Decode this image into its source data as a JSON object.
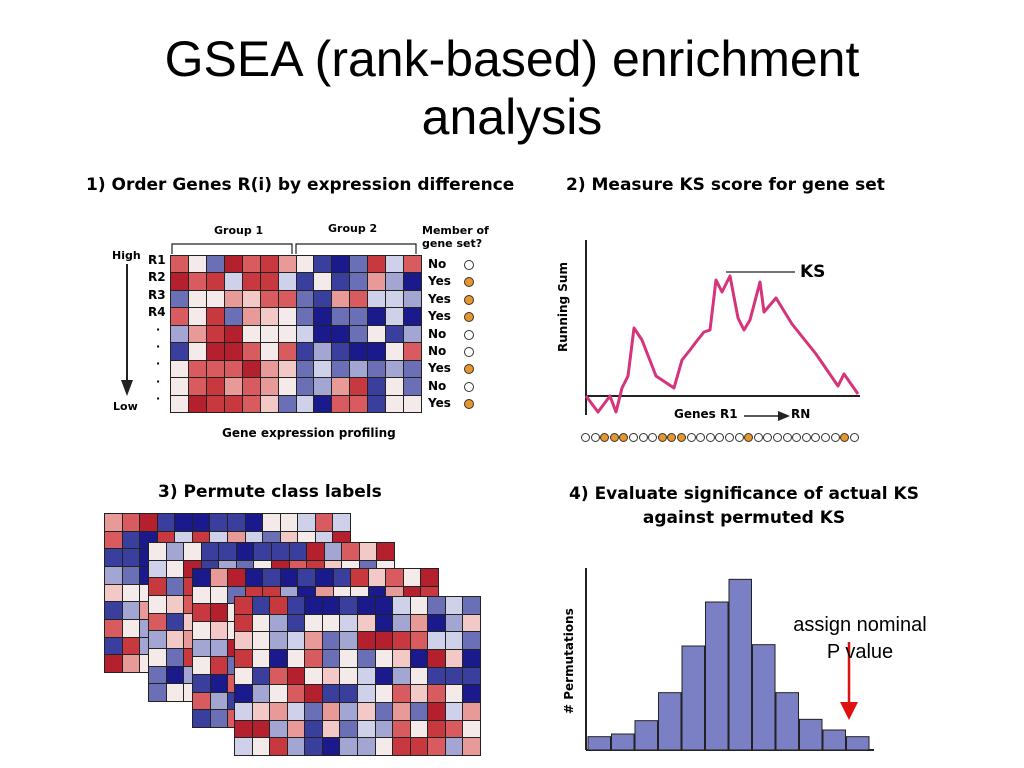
{
  "title_line1": "GSEA (rank-based) enrichment",
  "title_line2": "analysis",
  "panel1": {
    "heading": "1) Order Genes R(i) by expression difference",
    "group1": "Group 1",
    "group2": "Group 2",
    "member_header_1": "Member of",
    "member_header_2": "gene set?",
    "high": "High",
    "low": "Low",
    "rank_labels": [
      "R1",
      "R2",
      "R3",
      "R4",
      "·",
      "·",
      "·",
      "·",
      "·"
    ],
    "membership": [
      "No",
      "Yes",
      "Yes",
      "Yes",
      "No",
      "No",
      "Yes",
      "No",
      "Yes"
    ],
    "footer": "Gene expression profiling",
    "colors": {
      "red": "#b2182b",
      "blue": "#1a1a8c",
      "member_fill": "#e8952a"
    }
  },
  "panel2": {
    "heading": "2) Measure KS score for gene set",
    "ylabel": "Running Sum",
    "ks_label": "KS",
    "genes_label": "Genes R1",
    "genes_end": "RN",
    "curve_color": "#d6337a",
    "hit_strip": [
      0,
      0,
      1,
      1,
      1,
      0,
      0,
      0,
      1,
      1,
      1,
      0,
      0,
      0,
      0,
      0,
      0,
      1,
      0,
      0,
      0,
      0,
      0,
      0,
      0,
      0,
      0,
      1,
      0
    ]
  },
  "panel3": {
    "heading": "3) Permute class labels"
  },
  "panel4": {
    "heading_1": "4) Evaluate significance of actual KS",
    "heading_2": "against permuted KS",
    "ylabel": "# Permutations",
    "annotation_1": "assign nominal",
    "annotation_2": "P value",
    "bar_color": "#7b7fc4",
    "arrow_color": "#e01010"
  },
  "chart_data": {
    "type": "bar",
    "title": "",
    "xlabel": "",
    "ylabel": "# Permutations",
    "values": [
      1,
      1.2,
      2.2,
      4.3,
      7.8,
      11.1,
      12.8,
      7.9,
      4.3,
      2.3,
      1.5,
      1.0
    ]
  }
}
